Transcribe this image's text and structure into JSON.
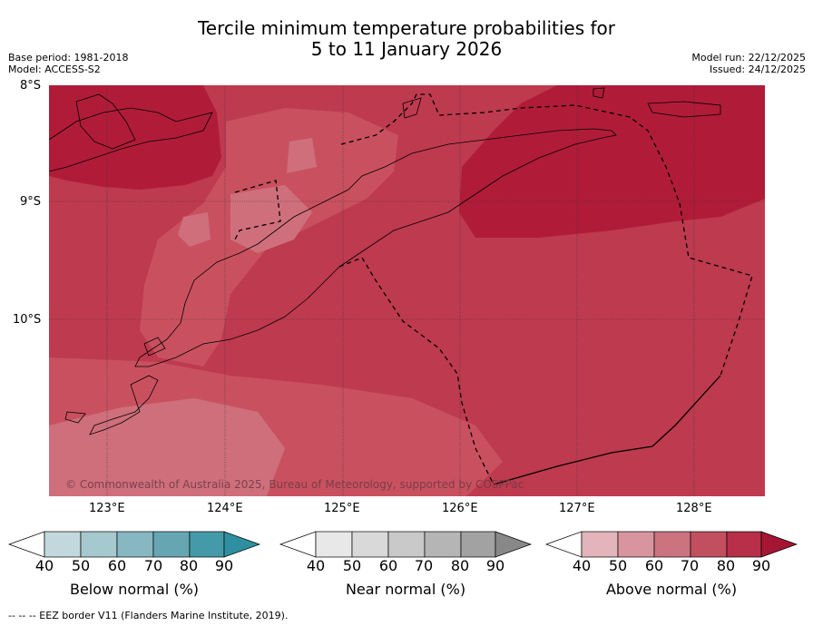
{
  "title_line1": "Tercile minimum temperature probabilities for",
  "title_line2": "5 to 11 January 2026",
  "meta": {
    "base_period": "Base period: 1981-2018",
    "model": "Model: ACCESS-S2",
    "model_run": "Model run: 22/12/2025",
    "issued": "Issued: 24/12/2025"
  },
  "map": {
    "lat_labels": [
      "8°S",
      "9°S",
      "10°S"
    ],
    "lon_labels": [
      "123°E",
      "124°E",
      "125°E",
      "126°E",
      "127°E",
      "128°E"
    ],
    "copyright": "© Commonwealth of Australia 2025, Bureau of Meteorology, supported by COSPPac",
    "colors": {
      "above_60": "#cf6f7c",
      "above_70": "#c9515f",
      "above_80": "#be3a4e",
      "above_90": "#b01c38",
      "land_outline": "#000000"
    }
  },
  "colorbars": {
    "below": {
      "label": "Below normal (%)",
      "ticks": [
        "40",
        "50",
        "60",
        "70",
        "80",
        "90"
      ],
      "colors": [
        "#c2d8dd",
        "#a6c8cf",
        "#87b8c2",
        "#66a6b3",
        "#459aa9",
        "#2d8fa0"
      ]
    },
    "near": {
      "label": "Near normal (%)",
      "ticks": [
        "40",
        "50",
        "60",
        "70",
        "80",
        "90"
      ],
      "colors": [
        "#e8e8e8",
        "#d9d9d9",
        "#c9c9c9",
        "#b5b5b5",
        "#a2a2a2",
        "#888888"
      ]
    },
    "above": {
      "label": "Above normal (%)",
      "ticks": [
        "40",
        "50",
        "60",
        "70",
        "80",
        "90"
      ],
      "colors": [
        "#e3b4bb",
        "#d8959f",
        "#cc7380",
        "#c24f5f",
        "#b72f48",
        "#a51534"
      ]
    }
  },
  "footer": "--  --  -- EEZ border V11 (Flanders Marine Institute, 2019)."
}
